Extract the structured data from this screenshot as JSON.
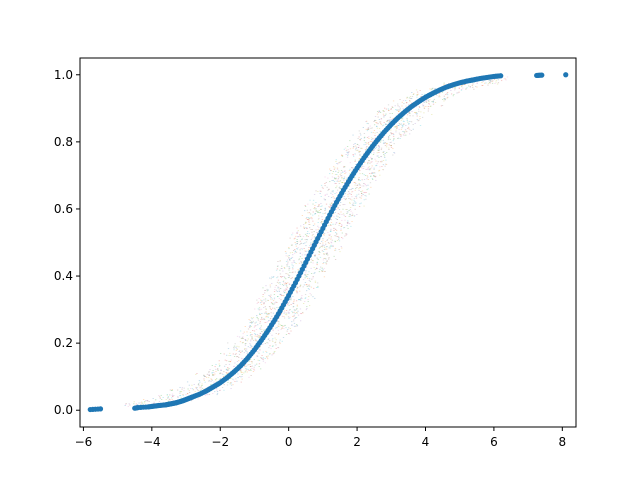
{
  "chart_data": {
    "type": "scatter",
    "title": "",
    "xlabel": "",
    "ylabel": "",
    "xlim": [
      -6.1,
      8.4
    ],
    "ylim": [
      -0.05,
      1.05
    ],
    "x_ticks": [
      -6,
      -4,
      -2,
      0,
      2,
      4,
      6,
      8
    ],
    "y_ticks": [
      0.0,
      0.2,
      0.4,
      0.6,
      0.8,
      1.0
    ],
    "x_tick_labels": [
      "−6",
      "−4",
      "−2",
      "0",
      "2",
      "4",
      "6",
      "8"
    ],
    "y_tick_labels": [
      "0.0",
      "0.2",
      "0.4",
      "0.6",
      "0.8",
      "1.0"
    ],
    "grid": false,
    "legend": "none",
    "description_of_marks": "Empirical CDF of a sample (blue points) overlaid on a dense band of many faint multicolored bootstrap/simulated ECDF points",
    "series": [
      {
        "color": "#1f77b4",
        "points": [
          [
            -5.8,
            0.002
          ],
          [
            -5.5,
            0.004
          ],
          [
            -4.5,
            0.006
          ],
          [
            -4.4,
            0.008
          ],
          [
            -4.1,
            0.01
          ],
          [
            -3.95,
            0.012
          ],
          [
            -3.8,
            0.014
          ],
          [
            -3.6,
            0.016
          ],
          [
            -3.5,
            0.018
          ],
          [
            -3.4,
            0.02
          ],
          [
            -3.3,
            0.022
          ],
          [
            -3.2,
            0.025
          ],
          [
            -3.1,
            0.028
          ],
          [
            -3.0,
            0.032
          ],
          [
            -2.9,
            0.036
          ],
          [
            -2.8,
            0.04
          ],
          [
            -2.6,
            0.048
          ],
          [
            -2.4,
            0.058
          ],
          [
            -2.2,
            0.07
          ],
          [
            -2.0,
            0.082
          ],
          [
            -1.8,
            0.097
          ],
          [
            -1.6,
            0.114
          ],
          [
            -1.4,
            0.133
          ],
          [
            -1.2,
            0.155
          ],
          [
            -1.0,
            0.18
          ],
          [
            -0.8,
            0.208
          ],
          [
            -0.6,
            0.238
          ],
          [
            -0.4,
            0.27
          ],
          [
            -0.2,
            0.305
          ],
          [
            0.0,
            0.342
          ],
          [
            0.2,
            0.38
          ],
          [
            0.4,
            0.42
          ],
          [
            0.6,
            0.461
          ],
          [
            0.8,
            0.502
          ],
          [
            1.0,
            0.542
          ],
          [
            1.2,
            0.582
          ],
          [
            1.4,
            0.62
          ],
          [
            1.6,
            0.656
          ],
          [
            1.8,
            0.69
          ],
          [
            2.0,
            0.722
          ],
          [
            2.2,
            0.752
          ],
          [
            2.4,
            0.78
          ],
          [
            2.6,
            0.806
          ],
          [
            2.8,
            0.83
          ],
          [
            3.0,
            0.852
          ],
          [
            3.2,
            0.872
          ],
          [
            3.4,
            0.89
          ],
          [
            3.6,
            0.906
          ],
          [
            3.8,
            0.92
          ],
          [
            4.0,
            0.933
          ],
          [
            4.2,
            0.944
          ],
          [
            4.4,
            0.954
          ],
          [
            4.6,
            0.963
          ],
          [
            4.8,
            0.97
          ],
          [
            5.0,
            0.976
          ],
          [
            5.2,
            0.981
          ],
          [
            5.4,
            0.985
          ],
          [
            5.6,
            0.989
          ],
          [
            5.8,
            0.992
          ],
          [
            6.0,
            0.995
          ],
          [
            6.2,
            0.997
          ],
          [
            7.25,
            0.998
          ],
          [
            7.4,
            0.999
          ],
          [
            8.1,
            1.0
          ]
        ]
      }
    ],
    "background_band": {
      "colors": [
        "#1f77b4",
        "#ff7f0e",
        "#2ca02c",
        "#d62728",
        "#9467bd",
        "#8c564b",
        "#e377c2",
        "#7f7f7f",
        "#bcbd22",
        "#17becf"
      ],
      "x_range": [
        -4.8,
        6.2
      ],
      "spread": 0.9
    }
  }
}
